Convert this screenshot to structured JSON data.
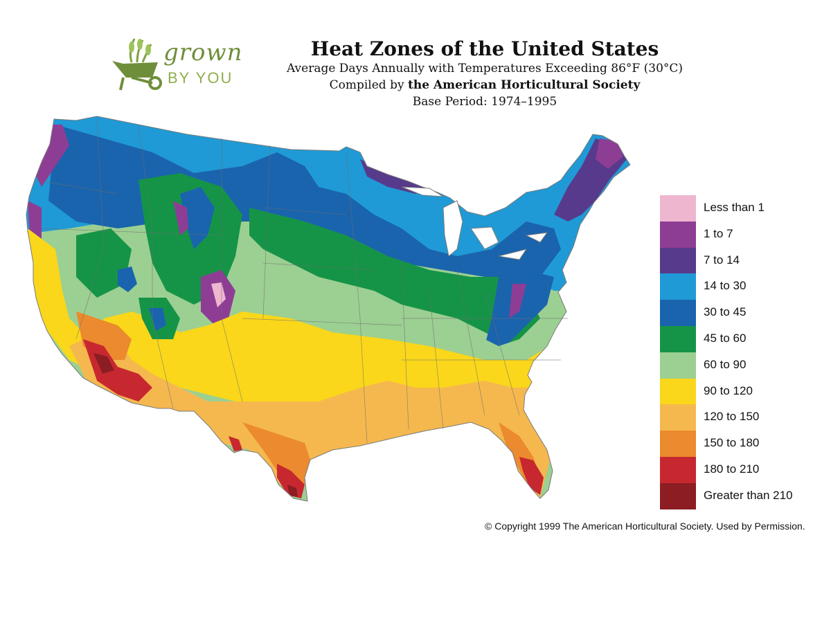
{
  "logo": {
    "line1": "grown",
    "line2": "BY YOU"
  },
  "header": {
    "title": "Heat Zones of the United States",
    "subtitle": "Average Days Annually with Temperatures Exceeding 86°F (30°C)",
    "compiled_prefix": "Compiled by ",
    "compiled_org": "the American Horticultural Society",
    "base_period": "Base Period: 1974–1995"
  },
  "legend": [
    {
      "label": "Less than 1",
      "color": "#efb6d0"
    },
    {
      "label": "1 to 7",
      "color": "#8e3d95"
    },
    {
      "label": "7 to 14",
      "color": "#583a8c"
    },
    {
      "label": "14 to 30",
      "color": "#1f9ad6"
    },
    {
      "label": "30 to 45",
      "color": "#1a64ad"
    },
    {
      "label": "45 to 60",
      "color": "#159447"
    },
    {
      "label": "60 to 90",
      "color": "#9ccf92"
    },
    {
      "label": "90 to 120",
      "color": "#fad71a"
    },
    {
      "label": "120 to 150",
      "color": "#f5b84e"
    },
    {
      "label": "150 to 180",
      "color": "#eb8a2e"
    },
    {
      "label": "180 to 210",
      "color": "#c7282f"
    },
    {
      "label": "Greater than 210",
      "color": "#8b1d23"
    }
  ],
  "copyright": "© Copyright 1999 The American Horticultural Society. Used by Permission."
}
